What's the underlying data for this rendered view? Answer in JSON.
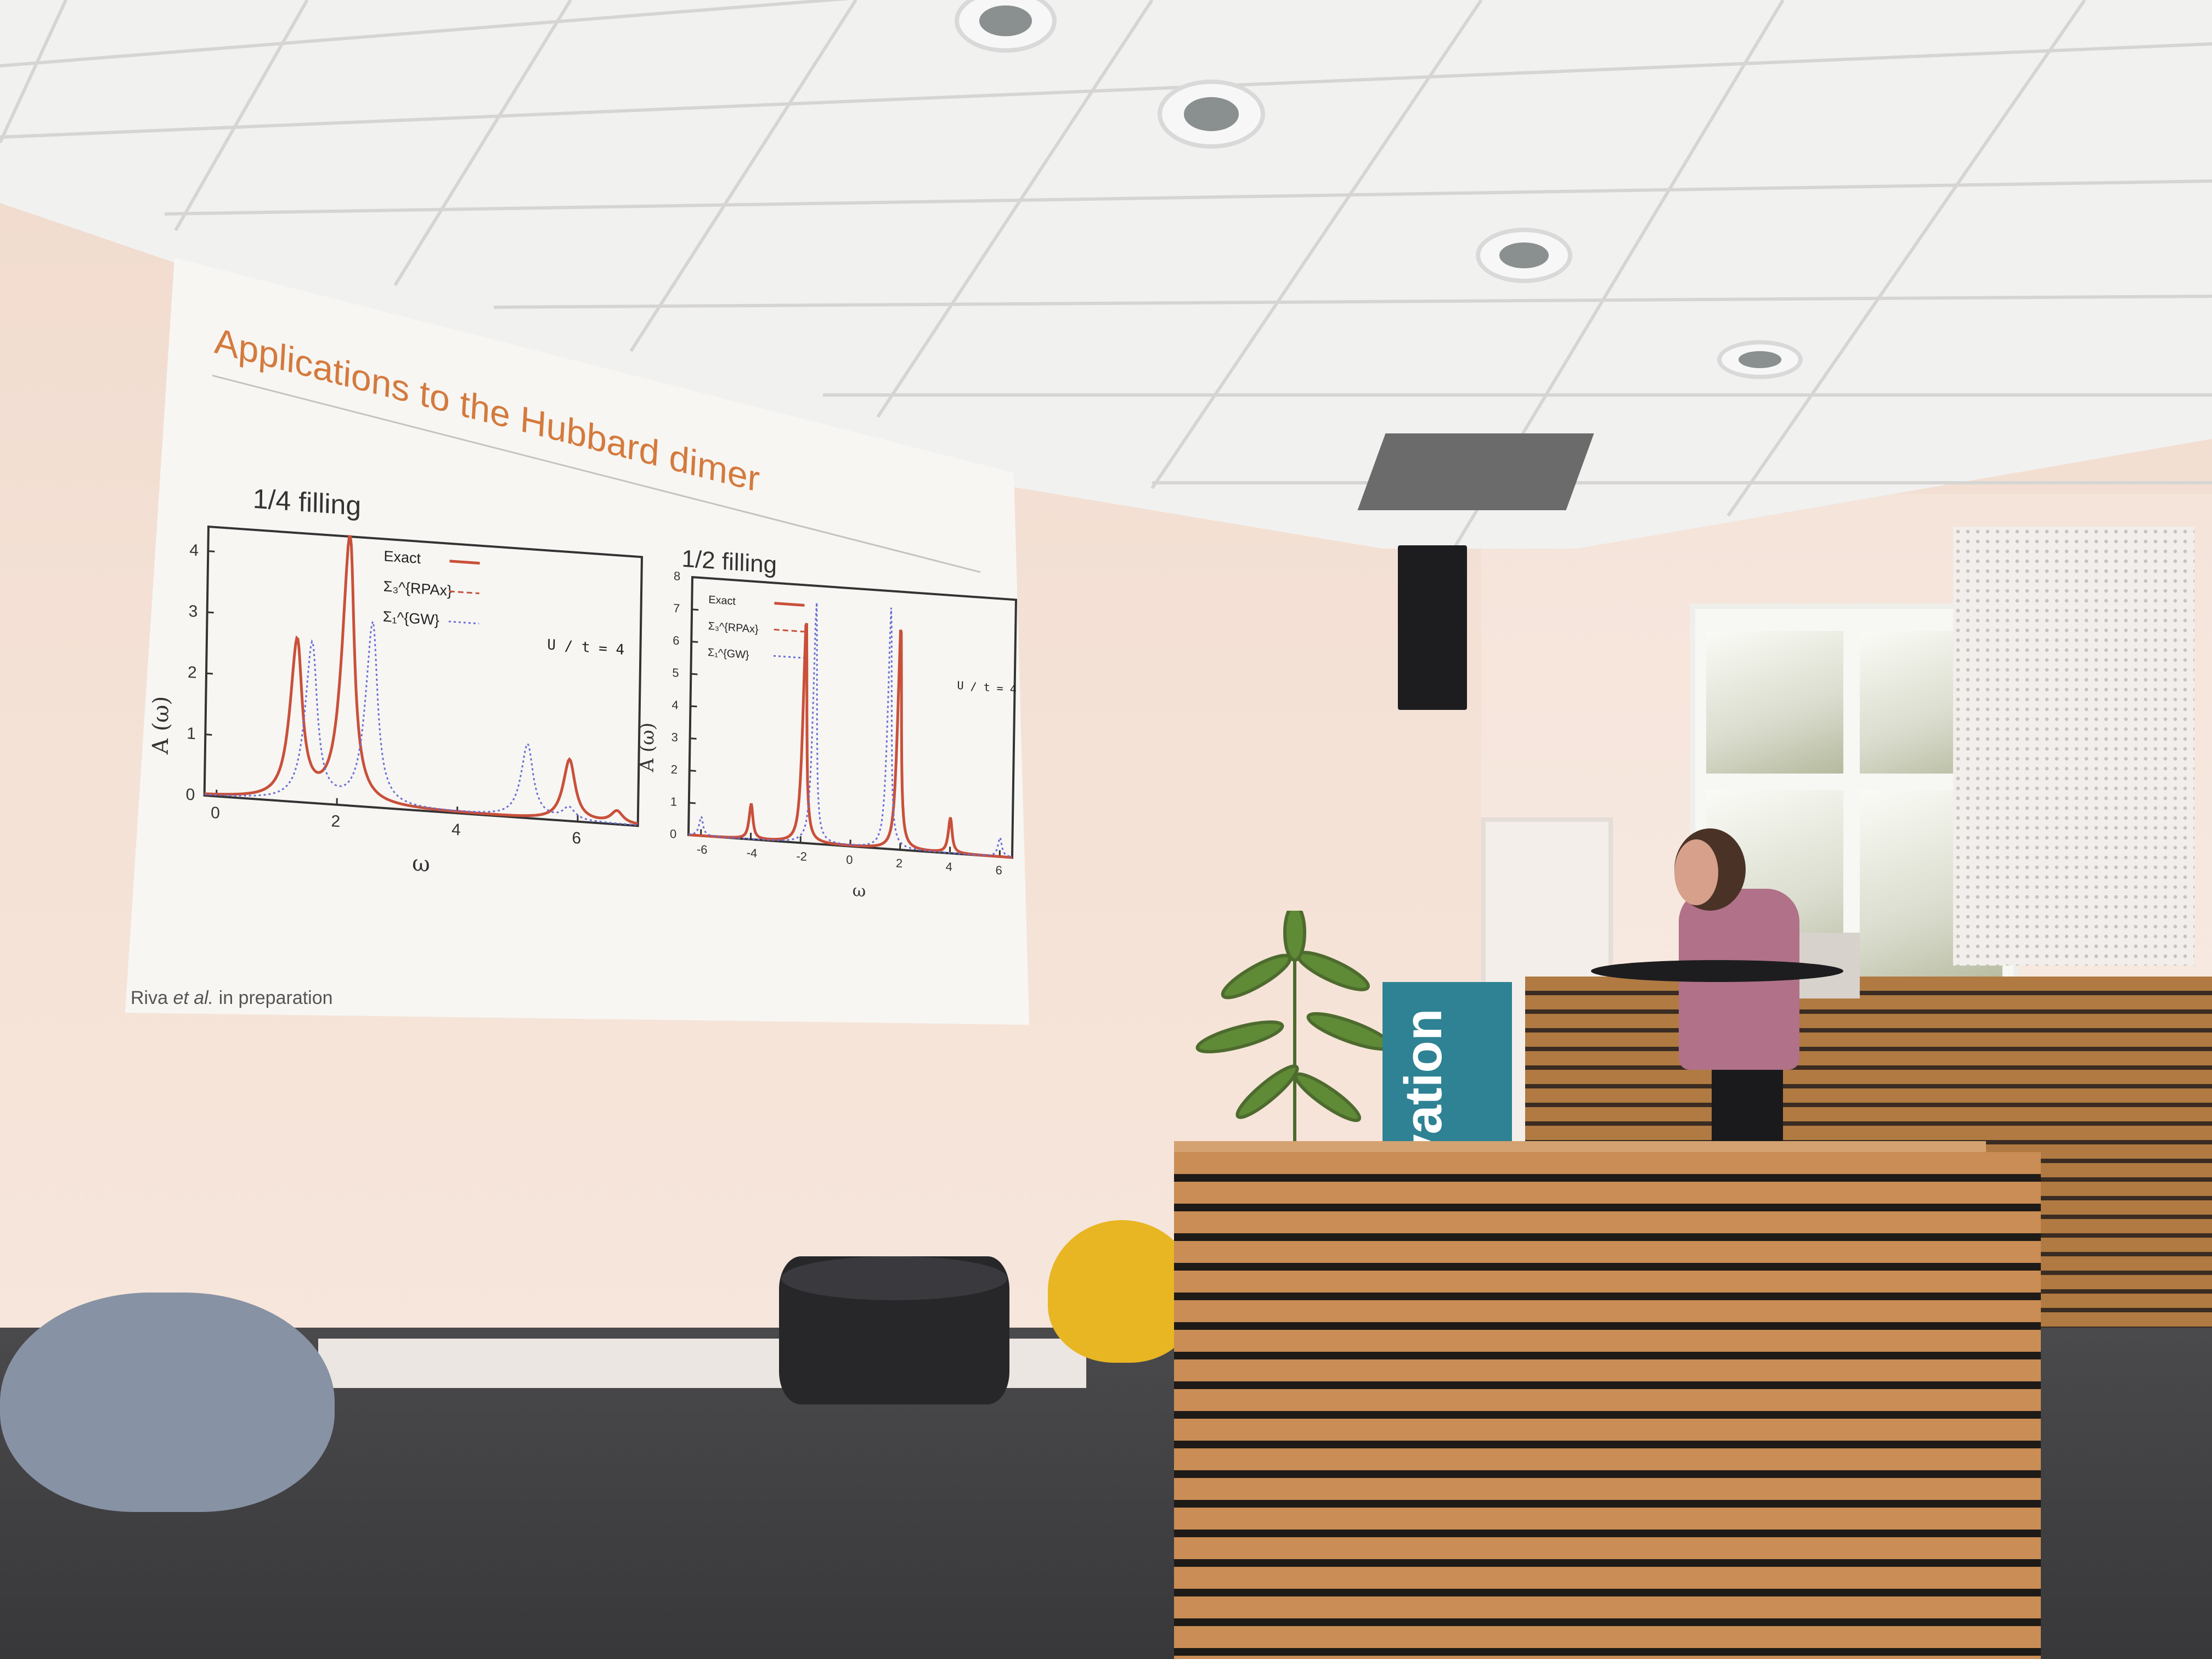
{
  "slide": {
    "title": "Applications to the Hubbard dimer",
    "citation_prefix": "Riva ",
    "citation_italic": "et al.",
    "citation_suffix": " in preparation"
  },
  "chart_data": [
    {
      "type": "line",
      "title": "1/4 filling",
      "xlabel": "ω",
      "ylabel": "A (ω)",
      "annotation": "U / t = 4",
      "xlim": [
        -0.2,
        7
      ],
      "ylim": [
        0,
        4.4
      ],
      "x_ticks": [
        "0",
        "2",
        "4",
        "6"
      ],
      "y_ticks": [
        "0",
        "1",
        "2",
        "3",
        "4"
      ],
      "legend": [
        "Exact",
        "Σ₃^{RPAx}",
        "Σ₁^{GW}"
      ],
      "legend_placement": "top-center",
      "series": [
        {
          "name": "Exact",
          "peaks": [
            [
              1.3,
              2.6
            ],
            [
              2.15,
              4.4
            ],
            [
              5.85,
              1.0
            ],
            [
              6.65,
              0.2
            ]
          ]
        },
        {
          "name": "Σ₃^{RPAx}",
          "peaks": [
            [
              1.3,
              2.6
            ],
            [
              2.15,
              4.4
            ],
            [
              5.85,
              1.0
            ],
            [
              6.65,
              0.2
            ]
          ]
        },
        {
          "name": "Σ₁^{GW}",
          "peaks": [
            [
              1.55,
              2.6
            ],
            [
              2.55,
              3.0
            ],
            [
              5.15,
              1.2
            ],
            [
              5.85,
              0.2
            ]
          ]
        }
      ]
    },
    {
      "type": "line",
      "title": "1/2 filling",
      "xlabel": "ω",
      "ylabel": "A (ω)",
      "annotation": "U / t = 4",
      "xlim": [
        -6.5,
        6.5
      ],
      "ylim": [
        0,
        8
      ],
      "x_ticks": [
        "-6",
        "-4",
        "-2",
        "0",
        "2",
        "4",
        "6"
      ],
      "y_ticks": [
        "0",
        "1",
        "2",
        "3",
        "4",
        "5",
        "6",
        "7",
        "8"
      ],
      "legend": [
        "Exact",
        "Σ₃^{RPAx}",
        "Σ₁^{GW}"
      ],
      "legend_placement": "top-left",
      "series": [
        {
          "name": "Exact",
          "peaks": [
            [
              -4.0,
              1.1
            ],
            [
              -1.9,
              7.0
            ],
            [
              1.9,
              7.0
            ],
            [
              4.0,
              1.1
            ]
          ]
        },
        {
          "name": "Σ₃^{RPAx}",
          "peaks": [
            [
              -4.0,
              1.1
            ],
            [
              -1.9,
              7.0
            ],
            [
              1.9,
              7.0
            ],
            [
              4.0,
              1.1
            ]
          ]
        },
        {
          "name": "Σ₁^{GW}",
          "peaks": [
            [
              -6.0,
              0.6
            ],
            [
              -1.5,
              7.5
            ],
            [
              1.5,
              7.5
            ],
            [
              6.0,
              0.6
            ]
          ]
        }
      ]
    }
  ],
  "scene": {
    "banner_text": "vation",
    "colors": {
      "exact": "#c9503a",
      "rpax": "#c9503a",
      "gw": "#6a6fd6",
      "title": "#d47a3d"
    }
  }
}
